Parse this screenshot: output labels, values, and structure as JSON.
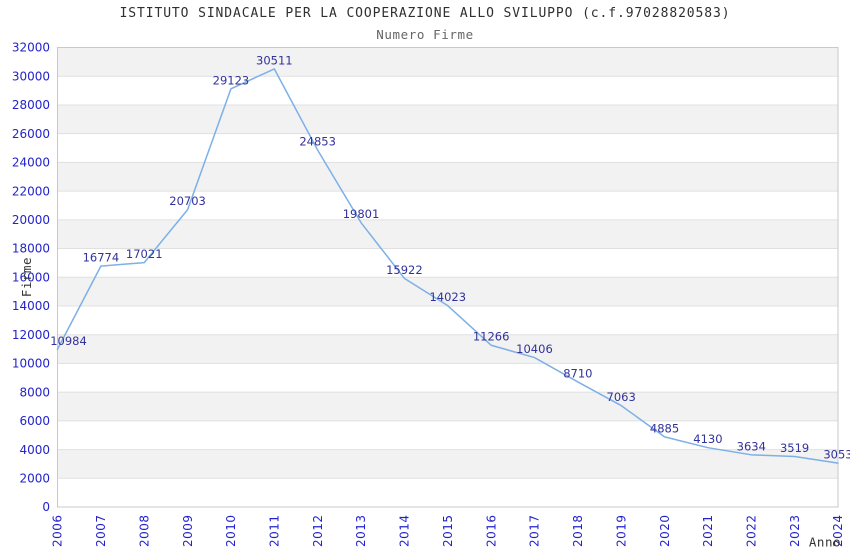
{
  "chart_data": {
    "type": "line",
    "title": "ISTITUTO SINDACALE PER LA COOPERAZIONE ALLO SVILUPPO (c.f.97028820583)",
    "subtitle": "Numero Firme",
    "xlabel": "Anno",
    "ylabel": "Firme",
    "x": [
      2006,
      2007,
      2008,
      2009,
      2010,
      2011,
      2012,
      2013,
      2014,
      2015,
      2016,
      2017,
      2018,
      2019,
      2020,
      2021,
      2022,
      2023,
      2024
    ],
    "series": [
      {
        "name": "Numero Firme",
        "values": [
          10984,
          16774,
          17021,
          20703,
          29123,
          30511,
          24853,
          19801,
          15922,
          14023,
          11266,
          10406,
          8710,
          7063,
          4885,
          4130,
          3634,
          3519,
          3053
        ]
      }
    ],
    "data_labels_visible": true,
    "ylim": [
      0,
      32000
    ],
    "ytick_step": 2000,
    "grid": "horizontal, alternating shaded bands every 2000",
    "legend_position": "none",
    "colors": {
      "line": "#7db0e6",
      "data_label": "#32329b",
      "tick_label": "#2323cd",
      "band": "#f2f2f2",
      "gridline": "#e0e0e0",
      "frame": "#c9c9c9",
      "title": "#2f2f2f",
      "subtitle": "#666666",
      "axis_title": "#333333"
    }
  }
}
